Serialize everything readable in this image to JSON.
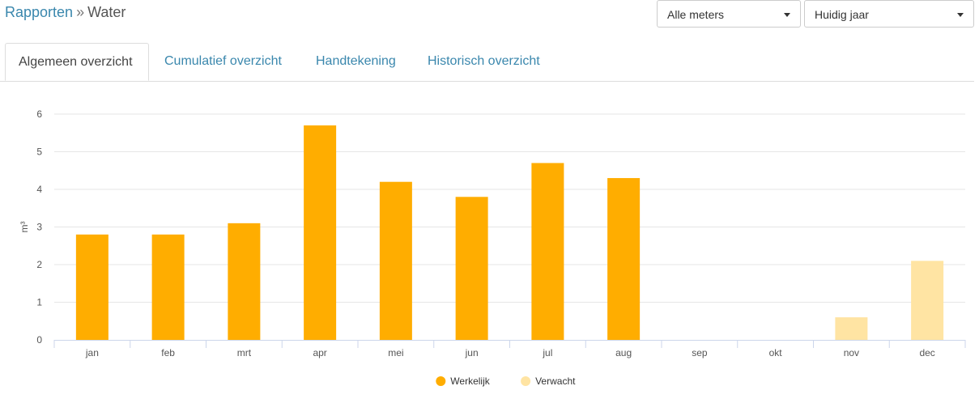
{
  "breadcrumb": {
    "parent": "Rapporten",
    "separator": "»",
    "current": "Water"
  },
  "filters": {
    "meter_select": "Alle meters",
    "period_select": "Huidig jaar"
  },
  "tabs": [
    {
      "label": "Algemeen overzicht",
      "active": true
    },
    {
      "label": "Cumulatief overzicht",
      "active": false
    },
    {
      "label": "Handtekening",
      "active": false
    },
    {
      "label": "Historisch overzicht",
      "active": false
    }
  ],
  "chart_data": {
    "type": "bar",
    "ylabel": "m³",
    "ylim": [
      0,
      6
    ],
    "yticks": [
      0,
      1,
      2,
      3,
      4,
      5,
      6
    ],
    "grid": true,
    "legend_position": "bottom-center",
    "categories": [
      "jan",
      "feb",
      "mrt",
      "apr",
      "mei",
      "jun",
      "jul",
      "aug",
      "sep",
      "okt",
      "nov",
      "dec"
    ],
    "series": [
      {
        "name": "Werkelijk",
        "color": "#ffad00",
        "values": [
          2.8,
          2.8,
          3.1,
          5.7,
          4.2,
          3.8,
          4.7,
          4.3,
          null,
          null,
          null,
          null
        ]
      },
      {
        "name": "Verwacht",
        "color": "#ffe4a3",
        "values": [
          null,
          null,
          null,
          null,
          null,
          null,
          null,
          null,
          null,
          null,
          0.6,
          2.1
        ]
      }
    ]
  }
}
